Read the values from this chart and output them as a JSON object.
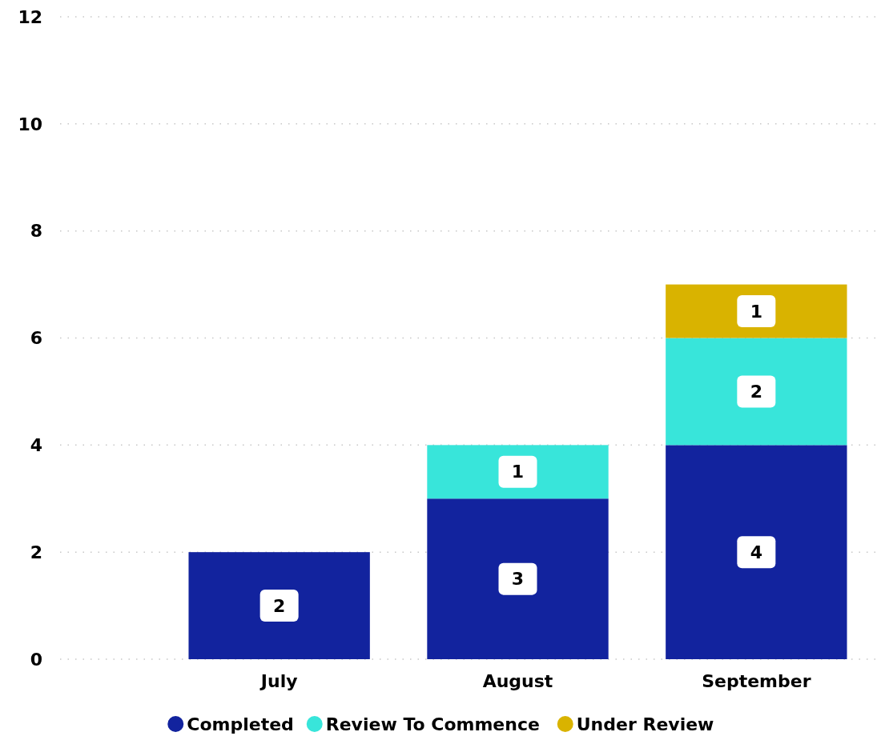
{
  "chart_data": {
    "type": "bar",
    "stacked": true,
    "categories": [
      "July",
      "August",
      "September"
    ],
    "series": [
      {
        "name": "Completed",
        "color": "#12239e",
        "values": [
          2,
          3,
          4
        ]
      },
      {
        "name": "Review To Commence",
        "color": "#38e5da",
        "values": [
          null,
          1,
          2
        ]
      },
      {
        "name": "Under Review",
        "color": "#d9b300",
        "values": [
          null,
          null,
          1
        ]
      }
    ],
    "ylim": [
      0,
      12
    ],
    "yticks": [
      0,
      2,
      4,
      6,
      8,
      10,
      12
    ],
    "grid": "y",
    "legend": "bottom",
    "data_labels": true
  }
}
